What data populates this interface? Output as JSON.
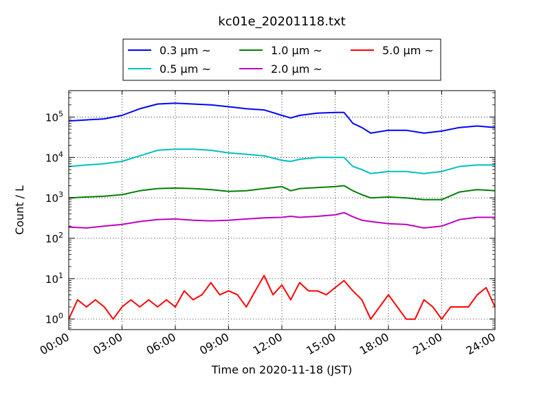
{
  "chart_data": {
    "type": "line",
    "title": "kc01e_20201118.txt",
    "xlabel": "Time on 2020-11-18 (JST)",
    "ylabel": "Count / L",
    "x_ticks": [
      "00:00",
      "03:00",
      "06:00",
      "09:00",
      "12:00",
      "15:00",
      "18:00",
      "21:00",
      "24:00"
    ],
    "y_ticks": [
      {
        "base": "10",
        "exp": "0",
        "value": 1
      },
      {
        "base": "10",
        "exp": "1",
        "value": 10
      },
      {
        "base": "10",
        "exp": "2",
        "value": 100
      },
      {
        "base": "10",
        "exp": "3",
        "value": 1000
      },
      {
        "base": "10",
        "exp": "4",
        "value": 10000
      },
      {
        "base": "10",
        "exp": "5",
        "value": 100000
      }
    ],
    "x_range_hours": [
      0,
      24
    ],
    "y_range": [
      0.55,
      450000
    ],
    "y_scale": "log",
    "grid": true,
    "legend_position": "top-center",
    "series": [
      {
        "name": "0.3 μm ~",
        "color": "#0000ff",
        "x": [
          0,
          1,
          2,
          3,
          4,
          5,
          6,
          7,
          8,
          9,
          10,
          11,
          12,
          12.5,
          13,
          14,
          15,
          15.5,
          16,
          16.5,
          17,
          18,
          19,
          20,
          21,
          22,
          23,
          24
        ],
        "values": [
          80000,
          85000,
          90000,
          110000,
          160000,
          210000,
          220000,
          210000,
          200000,
          180000,
          160000,
          150000,
          110000,
          95000,
          110000,
          125000,
          130000,
          130000,
          70000,
          55000,
          40000,
          47000,
          47000,
          40000,
          45000,
          55000,
          60000,
          55000
        ]
      },
      {
        "name": "0.5 μm ~",
        "color": "#00bfbf",
        "x": [
          0,
          1,
          2,
          3,
          4,
          5,
          6,
          7,
          8,
          9,
          10,
          11,
          12,
          12.5,
          13,
          14,
          15,
          15.5,
          16,
          16.5,
          17,
          18,
          19,
          20,
          21,
          22,
          23,
          24
        ],
        "values": [
          6000,
          6500,
          7000,
          8000,
          11000,
          15000,
          16000,
          16000,
          15000,
          13000,
          12000,
          11000,
          8500,
          8000,
          9000,
          10000,
          10000,
          10000,
          6000,
          5000,
          4000,
          4500,
          4500,
          4000,
          4500,
          6000,
          6500,
          6500
        ]
      },
      {
        "name": "1.0 μm ~",
        "color": "#008000",
        "x": [
          0,
          1,
          2,
          3,
          4,
          5,
          6,
          7,
          8,
          9,
          10,
          11,
          12,
          12.5,
          13,
          14,
          15,
          15.5,
          16,
          16.5,
          17,
          18,
          19,
          20,
          21,
          22,
          23,
          24
        ],
        "values": [
          1000,
          1050,
          1100,
          1200,
          1500,
          1700,
          1750,
          1700,
          1600,
          1450,
          1500,
          1700,
          1900,
          1500,
          1700,
          1800,
          1900,
          2000,
          1500,
          1200,
          1000,
          1050,
          1000,
          900,
          900,
          1400,
          1600,
          1500
        ]
      },
      {
        "name": "2.0 μm ~",
        "color": "#bf00bf",
        "x": [
          0,
          1,
          2,
          3,
          4,
          5,
          6,
          7,
          8,
          9,
          10,
          11,
          12,
          12.5,
          13,
          14,
          15,
          15.5,
          16,
          16.5,
          17,
          18,
          19,
          20,
          21,
          22,
          23,
          24
        ],
        "values": [
          190,
          180,
          200,
          220,
          260,
          290,
          300,
          280,
          270,
          280,
          300,
          320,
          330,
          350,
          330,
          350,
          380,
          430,
          340,
          280,
          260,
          230,
          220,
          180,
          200,
          290,
          330,
          330
        ]
      },
      {
        "name": "5.0 μm ~",
        "color": "#ff0000",
        "x": [
          0,
          0.5,
          1,
          1.5,
          2,
          2.5,
          3,
          3.5,
          4,
          4.5,
          5,
          5.5,
          6,
          6.5,
          7,
          7.5,
          8,
          8.5,
          9,
          9.5,
          10,
          10.5,
          11,
          11.5,
          12,
          12.5,
          13,
          13.5,
          14,
          14.5,
          15,
          15.5,
          16,
          16.5,
          17,
          17.5,
          18,
          18.5,
          19,
          19.5,
          20,
          20.5,
          21,
          21.5,
          22,
          22.5,
          23,
          23.5,
          24
        ],
        "values": [
          1,
          3,
          2,
          3,
          2,
          1,
          2,
          3,
          2,
          3,
          2,
          3,
          2,
          5,
          3,
          4,
          8,
          4,
          5,
          4,
          2,
          5,
          12,
          4,
          7,
          3,
          8,
          5,
          5,
          4,
          6,
          9,
          5,
          3,
          1,
          2,
          4,
          2,
          1,
          1,
          3,
          2,
          1,
          2,
          2,
          2,
          4,
          6,
          2
        ]
      }
    ]
  }
}
